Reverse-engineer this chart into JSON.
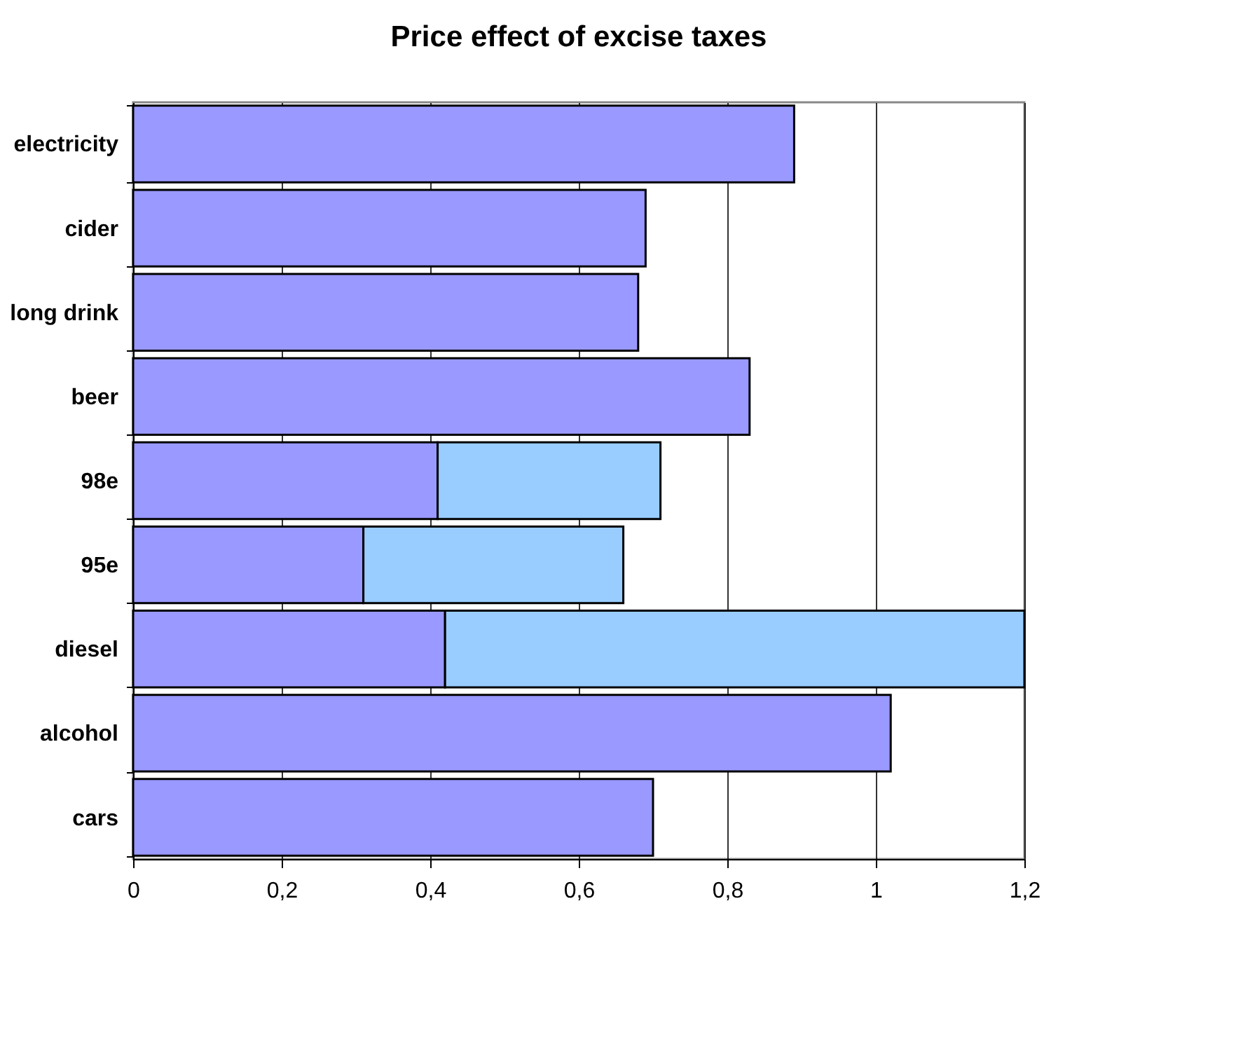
{
  "chart_data": {
    "type": "bar",
    "orientation": "horizontal",
    "stacked": true,
    "title": "Price effect of excise taxes",
    "categories": [
      "electricity",
      "cider",
      "long drink",
      "beer",
      "98e",
      "95e",
      "diesel",
      "alcohol",
      "cars"
    ],
    "series": [
      {
        "color": "#9999ff",
        "values": [
          0.89,
          0.69,
          0.68,
          0.83,
          0.41,
          0.31,
          0.42,
          1.02,
          0.7
        ]
      },
      {
        "color": "#99ccff",
        "values": [
          null,
          null,
          null,
          null,
          0.3,
          0.35,
          0.78,
          null,
          null
        ]
      }
    ],
    "xlim": [
      0,
      1.2
    ],
    "xticks": [
      0,
      {
        "value": 0.2,
        "label": "0,2"
      },
      {
        "value": 0.4,
        "label": "0,4"
      },
      {
        "value": 0.6,
        "label": "0,6"
      },
      {
        "value": 0.8,
        "label": "0,8"
      },
      1,
      {
        "value": 1.2,
        "label": "1,2"
      }
    ],
    "grid": "x",
    "legend": false
  }
}
